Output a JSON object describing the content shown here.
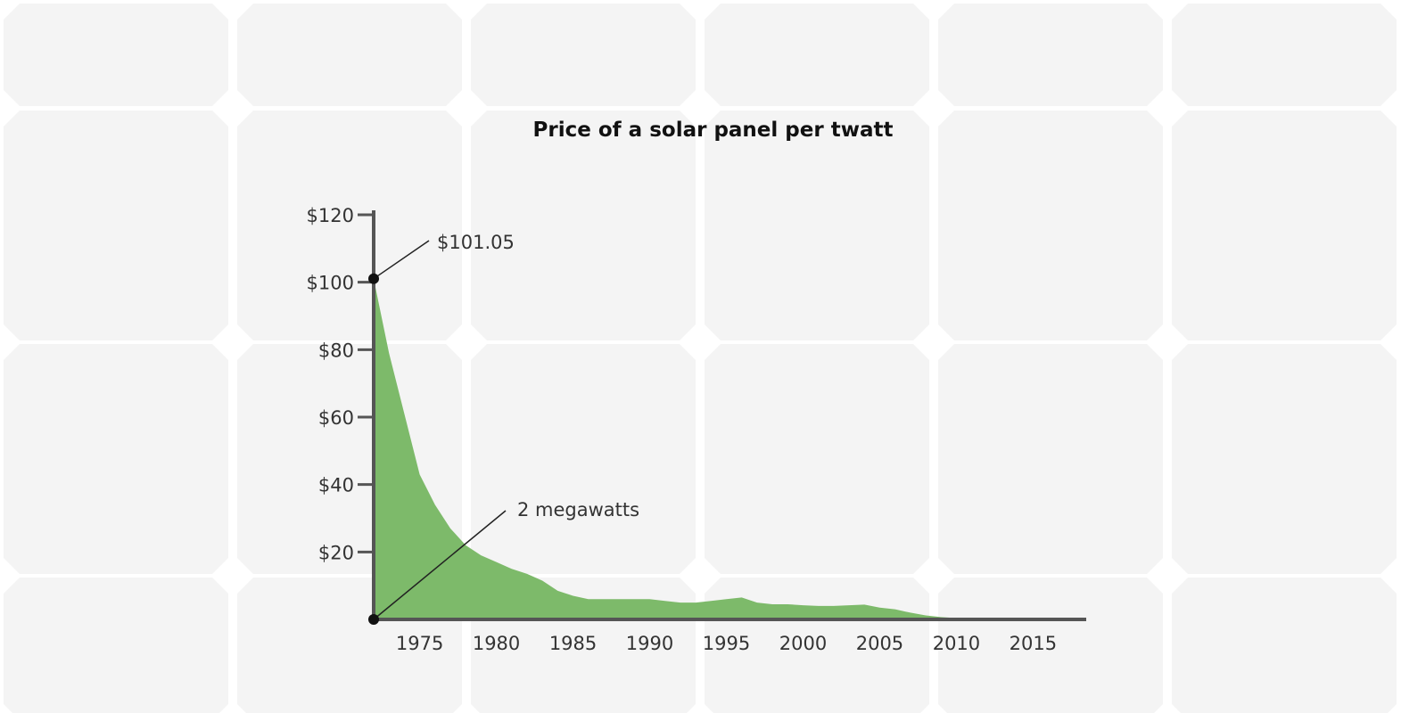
{
  "colors": {
    "background": "#ffffff",
    "panel_cell": "#f4f4f4",
    "panel_line": "#ffffff",
    "area_fill": "#7dba6a",
    "axis": "#555555",
    "text": "#333333",
    "title": "#111111"
  },
  "chart_data": {
    "type": "area",
    "title": "Price of a solar panel per twatt",
    "xlabel": "",
    "ylabel": "",
    "xlim": [
      1972,
      2018
    ],
    "ylim": [
      0,
      120
    ],
    "x_ticks": [
      1975,
      1980,
      1985,
      1990,
      1995,
      2000,
      2005,
      2010,
      2015
    ],
    "y_ticks": [
      {
        "value": 20,
        "label": "$20"
      },
      {
        "value": 40,
        "label": "$40"
      },
      {
        "value": 60,
        "label": "$60"
      },
      {
        "value": 80,
        "label": "$80"
      },
      {
        "value": 100,
        "label": "$100"
      },
      {
        "value": 120,
        "label": "$120"
      }
    ],
    "grid": false,
    "series": [
      {
        "x": [
          1972,
          1973,
          1974,
          1975,
          1976,
          1977,
          1978,
          1979,
          1980,
          1981,
          1982,
          1983,
          1984,
          1985,
          1986,
          1987,
          1988,
          1989,
          1990,
          1991,
          1992,
          1993,
          1994,
          1995,
          1996,
          1997,
          1998,
          1999,
          2000,
          2001,
          2002,
          2003,
          2004,
          2005,
          2006,
          2007,
          2008,
          2009,
          2010,
          2011,
          2012,
          2013,
          2014,
          2015,
          2016,
          2017,
          2018
        ],
        "values": [
          101.05,
          79,
          61,
          43,
          34,
          27,
          22,
          19,
          17,
          15,
          13.5,
          11.5,
          8.5,
          7,
          6,
          6,
          6,
          6,
          6,
          5.5,
          5,
          5,
          5.5,
          6,
          6.5,
          5,
          4.5,
          4.5,
          4.2,
          4,
          4,
          4.2,
          4.4,
          3.5,
          3,
          2,
          1.2,
          0.7,
          0.4,
          0.2,
          0.1,
          0.05,
          0.03,
          0.02,
          0.02,
          0.02,
          0.02
        ]
      }
    ],
    "annotations": [
      {
        "x": 1972,
        "y": 101.05,
        "text": "$101.05"
      },
      {
        "x": 1972,
        "y": 0,
        "text": "2 megawatts"
      }
    ]
  }
}
